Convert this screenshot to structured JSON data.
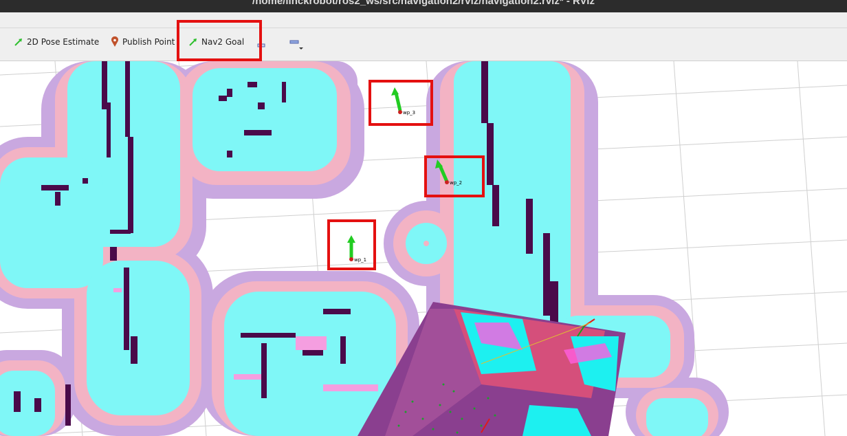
{
  "window": {
    "title": "/home/linckrobot/ros2_ws/src/navigation2/rviz/navigation2.rviz* - RViz"
  },
  "toolbar": {
    "tools": [
      {
        "label": "2D Pose Estimate",
        "icon": "green-arrow-icon"
      },
      {
        "label": "Publish Point",
        "icon": "map-pin-icon"
      },
      {
        "label": "Nav2 Goal",
        "icon": "green-arrow-icon"
      }
    ],
    "extra_icons": [
      "add-tool-icon",
      "remove-tool-icon"
    ]
  },
  "viewport": {
    "waypoints": [
      {
        "label": "wp_3"
      },
      {
        "label": "wp_2"
      },
      {
        "label": "wp_1"
      }
    ]
  },
  "colors": {
    "costmap_lethal": "#4a0a4a",
    "costmap_inscribed": "#7ff7f7",
    "costmap_inflation_outer": "#c9a8e0",
    "costmap_inflation_inner": "#f0b0c0",
    "goal_arrow": "#22cc22",
    "highlight_box": "#e41010"
  }
}
